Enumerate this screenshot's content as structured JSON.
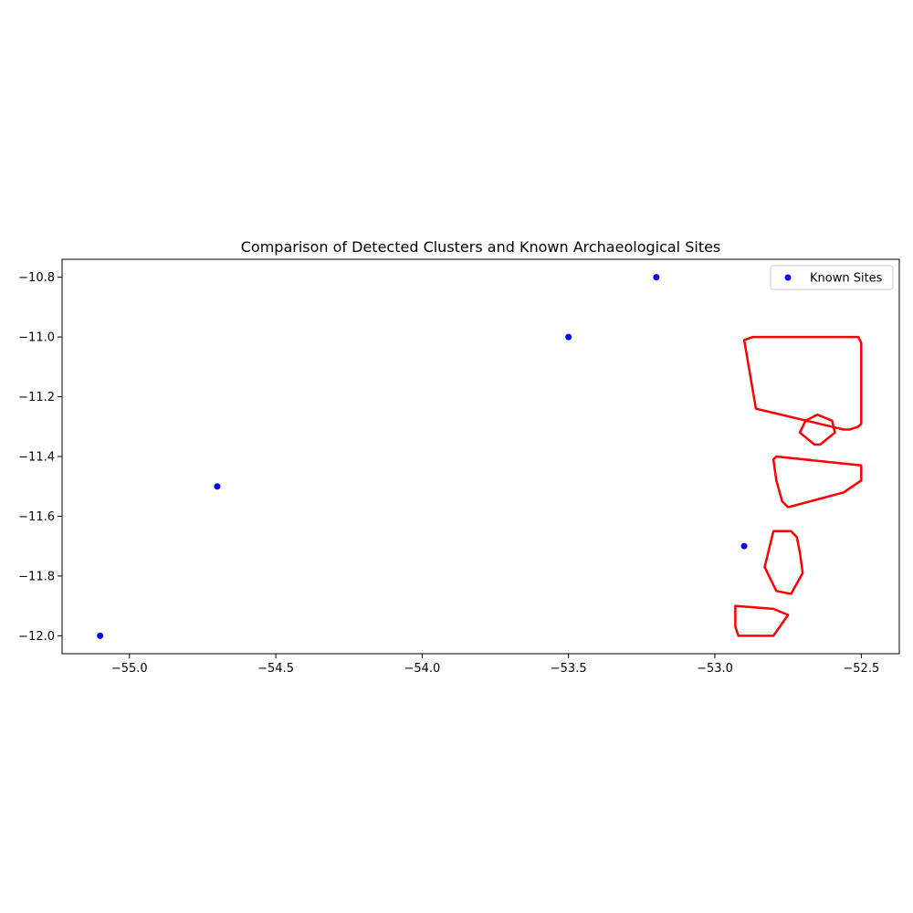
{
  "chart_data": {
    "type": "scatter",
    "title": "Comparison of Detected Clusters and Known Archaeological Sites",
    "xlabel": "",
    "ylabel": "",
    "xlim": [
      -55.23,
      -52.37
    ],
    "ylim": [
      -12.06,
      -10.74
    ],
    "xticks": [
      -55.0,
      -54.5,
      -54.0,
      -53.5,
      -53.0,
      -52.5
    ],
    "xtick_labels": [
      "−55.0",
      "−54.5",
      "−54.0",
      "−53.5",
      "−53.0",
      "−52.5"
    ],
    "yticks": [
      -10.8,
      -11.0,
      -11.2,
      -11.4,
      -11.6,
      -11.8,
      -12.0
    ],
    "ytick_labels": [
      "−10.8",
      "−11.0",
      "−11.2",
      "−11.4",
      "−11.6",
      "−11.8",
      "−12.0"
    ],
    "grid": false,
    "legend": {
      "placement": "upper right",
      "entries": [
        "Known Sites"
      ]
    },
    "series": [
      {
        "name": "Known Sites",
        "kind": "scatter",
        "color": "#0000ff",
        "points": [
          {
            "x": -53.2,
            "y": -10.8
          },
          {
            "x": -53.5,
            "y": -11.0
          },
          {
            "x": -54.7,
            "y": -11.5
          },
          {
            "x": -52.9,
            "y": -11.7
          },
          {
            "x": -55.1,
            "y": -12.0
          }
        ]
      }
    ],
    "polygons": {
      "color": "#ff0000",
      "items": [
        {
          "vertices": [
            [
              -52.9,
              -11.01
            ],
            [
              -52.87,
              -11.0
            ],
            [
              -52.51,
              -11.0
            ],
            [
              -52.5,
              -11.02
            ],
            [
              -52.5,
              -11.29
            ],
            [
              -52.51,
              -11.3
            ],
            [
              -52.54,
              -11.31
            ],
            [
              -52.56,
              -11.31
            ],
            [
              -52.86,
              -11.24
            ]
          ]
        },
        {
          "vertices": [
            [
              -52.71,
              -11.32
            ],
            [
              -52.66,
              -11.36
            ],
            [
              -52.64,
              -11.36
            ],
            [
              -52.59,
              -11.32
            ],
            [
              -52.6,
              -11.28
            ],
            [
              -52.65,
              -11.26
            ],
            [
              -52.69,
              -11.28
            ]
          ]
        },
        {
          "vertices": [
            [
              -52.79,
              -11.4
            ],
            [
              -52.5,
              -11.43
            ],
            [
              -52.5,
              -11.48
            ],
            [
              -52.56,
              -11.52
            ],
            [
              -52.75,
              -11.57
            ],
            [
              -52.77,
              -11.55
            ],
            [
              -52.79,
              -11.48
            ],
            [
              -52.8,
              -11.41
            ]
          ]
        },
        {
          "vertices": [
            [
              -52.8,
              -11.65
            ],
            [
              -52.74,
              -11.65
            ],
            [
              -52.72,
              -11.67
            ],
            [
              -52.71,
              -11.72
            ],
            [
              -52.7,
              -11.79
            ],
            [
              -52.74,
              -11.86
            ],
            [
              -52.79,
              -11.85
            ],
            [
              -52.83,
              -11.77
            ]
          ]
        },
        {
          "vertices": [
            [
              -52.93,
              -11.9
            ],
            [
              -52.8,
              -11.91
            ],
            [
              -52.75,
              -11.93
            ],
            [
              -52.8,
              -12.0
            ],
            [
              -52.92,
              -12.0
            ],
            [
              -52.93,
              -11.97
            ]
          ]
        }
      ]
    }
  }
}
